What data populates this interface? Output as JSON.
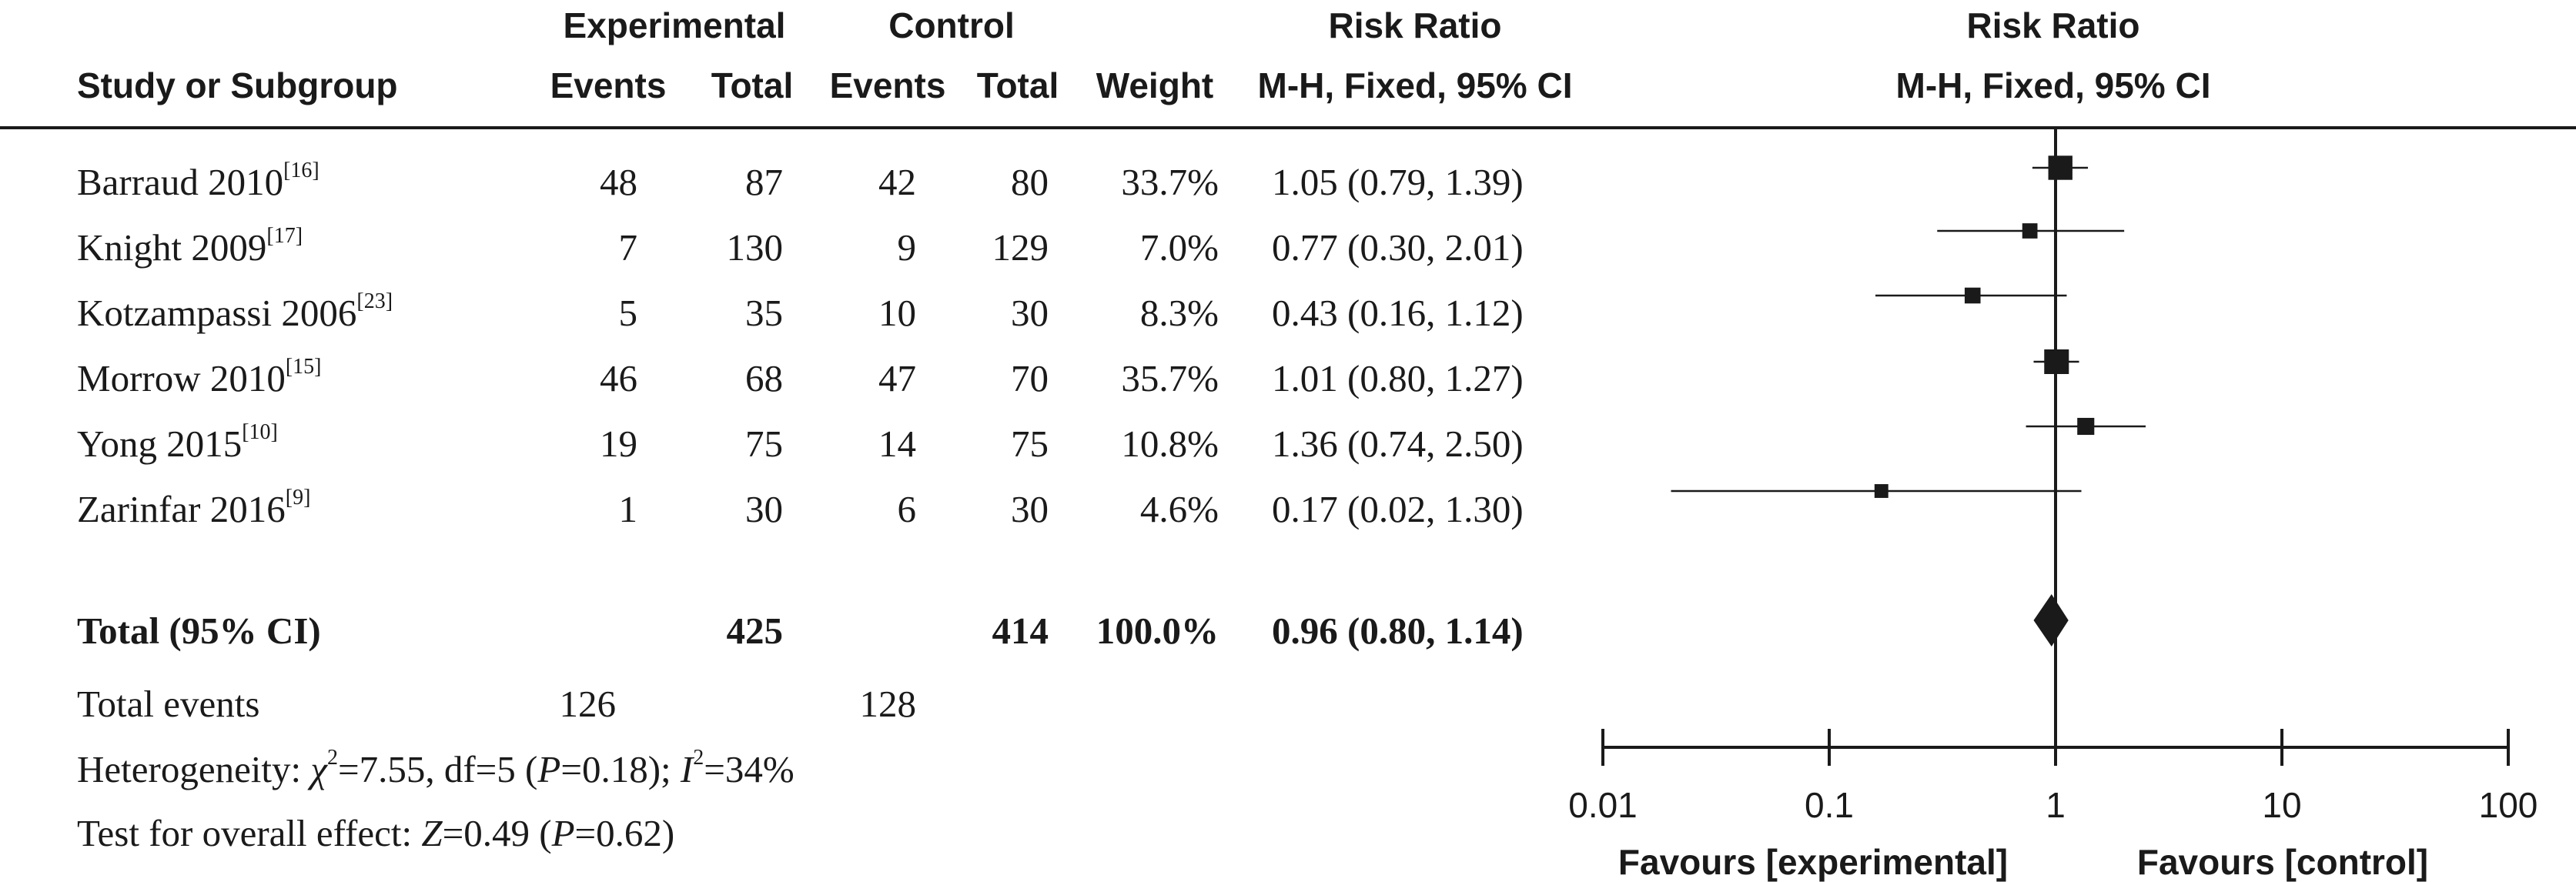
{
  "headers": {
    "group_experimental": "Experimental",
    "group_control": "Control",
    "risk_ratio": "Risk Ratio",
    "study_or_subgroup": "Study or Subgroup",
    "events": "Events",
    "total": "Total",
    "weight": "Weight",
    "method": "M-H, Fixed, 95% CI",
    "plot_title": "Risk Ratio",
    "plot_method": "M-H, Fixed, 95% CI"
  },
  "studies": [
    {
      "name": "Barraud 2010",
      "ref": "[16]",
      "exp_events": "48",
      "exp_total": "87",
      "ctl_events": "42",
      "ctl_total": "80",
      "weight": "33.7%",
      "ci_text": "1.05 (0.79, 1.39)"
    },
    {
      "name": "Knight 2009",
      "ref": "[17]",
      "exp_events": "7",
      "exp_total": "130",
      "ctl_events": "9",
      "ctl_total": "129",
      "weight": "7.0%",
      "ci_text": "0.77 (0.30, 2.01)"
    },
    {
      "name": "Kotzampassi 2006",
      "ref": "[23]",
      "exp_events": "5",
      "exp_total": "35",
      "ctl_events": "10",
      "ctl_total": "30",
      "weight": "8.3%",
      "ci_text": "0.43 (0.16, 1.12)"
    },
    {
      "name": "Morrow 2010",
      "ref": "[15]",
      "exp_events": "46",
      "exp_total": "68",
      "ctl_events": "47",
      "ctl_total": "70",
      "weight": "35.7%",
      "ci_text": "1.01 (0.80, 1.27)"
    },
    {
      "name": "Yong 2015",
      "ref": "[10]",
      "exp_events": "19",
      "exp_total": "75",
      "ctl_events": "14",
      "ctl_total": "75",
      "weight": "10.8%",
      "ci_text": "1.36 (0.74, 2.50)"
    },
    {
      "name": "Zarinfar 2016",
      "ref": "[9]",
      "exp_events": "1",
      "exp_total": "30",
      "ctl_events": "6",
      "ctl_total": "30",
      "weight": "4.6%",
      "ci_text": "0.17 (0.02, 1.30)"
    }
  ],
  "total": {
    "label": "Total (95% CI)",
    "exp_total": "425",
    "ctl_total": "414",
    "weight": "100.0%",
    "ci_text": "0.96 (0.80, 1.14)"
  },
  "total_events": {
    "label": "Total events",
    "exp": "126",
    "ctl": "128"
  },
  "heterogeneity": {
    "prefix": "Heterogeneity: ",
    "chi_symbol": "χ",
    "chi_exp": "2",
    "chi_value": "=7.55, df=5 (",
    "p_symbol": "P",
    "p_value": "=0.18); ",
    "i_symbol": "I",
    "i_exp": "2",
    "i_value": "=34%"
  },
  "overall_effect": {
    "prefix": "Test for overall effect: ",
    "z_symbol": "Z",
    "z_value": "=0.49 (",
    "p_symbol": "P",
    "p_value": "=0.62)"
  },
  "chart_data": {
    "type": "forest",
    "scale": "log",
    "xlim": [
      0.01,
      100
    ],
    "null_line": 1,
    "ticks": [
      0.01,
      0.1,
      1,
      10,
      100
    ],
    "tick_labels": [
      "0.01",
      "0.1",
      "1",
      "10",
      "100"
    ],
    "favours_left": "Favours [experimental]",
    "favours_right": "Favours [control]",
    "studies": [
      {
        "name": "Barraud 2010",
        "rr": 1.05,
        "lo": 0.79,
        "hi": 1.39,
        "weight": 33.7
      },
      {
        "name": "Knight 2009",
        "rr": 0.77,
        "lo": 0.3,
        "hi": 2.01,
        "weight": 7.0
      },
      {
        "name": "Kotzampassi 2006",
        "rr": 0.43,
        "lo": 0.16,
        "hi": 1.12,
        "weight": 8.3
      },
      {
        "name": "Morrow 2010",
        "rr": 1.01,
        "lo": 0.8,
        "hi": 1.27,
        "weight": 35.7
      },
      {
        "name": "Yong 2015",
        "rr": 1.36,
        "lo": 0.74,
        "hi": 2.5,
        "weight": 10.8
      },
      {
        "name": "Zarinfar 2016",
        "rr": 0.17,
        "lo": 0.02,
        "hi": 1.3,
        "weight": 4.6
      }
    ],
    "pooled": {
      "rr": 0.96,
      "lo": 0.8,
      "hi": 1.14
    }
  }
}
